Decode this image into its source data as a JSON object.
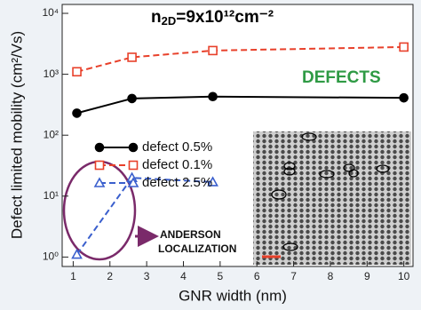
{
  "chart_data": {
    "type": "line",
    "title": {
      "main": "n",
      "subscript": "2D",
      "rest": "=9x10¹²cm⁻²"
    },
    "x_label": "GNR width (nm)",
    "y_label": "Defect limited mobility (cm²/Vs)",
    "annotations": [
      "DEFECTS",
      "ANDERSON",
      "LOCALIZATION"
    ],
    "log_y": true,
    "xlim": [
      0.7,
      10.25
    ],
    "xticks": [
      1,
      2,
      3,
      4,
      5,
      6,
      7,
      8,
      9,
      10
    ],
    "ylim": [
      0.7,
      14000
    ],
    "yticks": [
      {
        "value": 1,
        "label": "10⁰"
      },
      {
        "value": 10,
        "label": "10¹"
      },
      {
        "value": 100,
        "label": "10²"
      },
      {
        "value": 1000,
        "label": "10³"
      },
      {
        "value": 10000,
        "label": "10⁴"
      }
    ],
    "series": [
      {
        "name": "defect 0.5%",
        "color": "#000000",
        "marker": "circle",
        "dashed": false,
        "x": [
          1.1,
          2.6,
          4.8,
          10
        ],
        "values": [
          230,
          400,
          430,
          410
        ]
      },
      {
        "name": "defect 0.1%",
        "color": "#e8402a",
        "marker": "square",
        "dashed": true,
        "x": [
          1.1,
          2.6,
          4.8,
          10
        ],
        "values": [
          1100,
          1900,
          2450,
          2800
        ]
      },
      {
        "name": "defect 2.5%",
        "color": "#3a5fcd",
        "marker": "triangle",
        "dashed": true,
        "x": [
          1.1,
          2.6,
          4.8
        ],
        "values": [
          1.1,
          20,
          17
        ]
      }
    ]
  }
}
